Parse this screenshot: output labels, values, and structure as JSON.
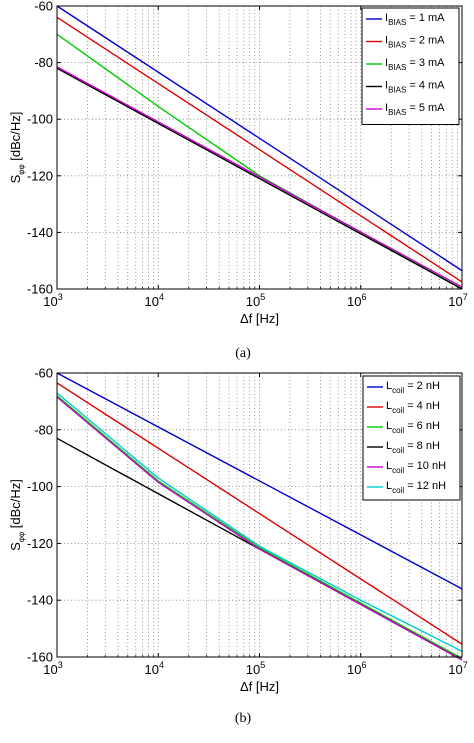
{
  "chart_data": [
    {
      "type": "line",
      "caption": "(a)",
      "xlabel": "Δf [Hz]",
      "ylabel": "S_φφ [dBc/Hz]",
      "xscale": "log",
      "xlim": [
        1000,
        10000000
      ],
      "ylim": [
        -160,
        -60
      ],
      "xticks": [
        1000,
        10000,
        100000,
        1000000,
        10000000
      ],
      "xtick_labels": [
        {
          "base": "10",
          "exp": "3"
        },
        {
          "base": "10",
          "exp": "4"
        },
        {
          "base": "10",
          "exp": "5"
        },
        {
          "base": "10",
          "exp": "6"
        },
        {
          "base": "10",
          "exp": "7"
        }
      ],
      "yticks": [
        -160,
        -140,
        -120,
        -100,
        -80,
        -60
      ],
      "ytick_labels": [
        "-160",
        "-140",
        "-120",
        "-100",
        "-80",
        "-60"
      ],
      "grid": true,
      "legend_position": "top-right",
      "series": [
        {
          "name": "I_BIAS = 1 mA",
          "label_main": "I",
          "label_sub": "BIAS",
          "label_rest": " = 1 mA",
          "color": "#0000cc",
          "x": [
            1000,
            10000000
          ],
          "y": [
            -60,
            -153.5
          ]
        },
        {
          "name": "I_BIAS = 2 mA",
          "label_main": "I",
          "label_sub": "BIAS",
          "label_rest": " = 2 mA",
          "color": "#dd0000",
          "x": [
            1000,
            10000000
          ],
          "y": [
            -64,
            -157.5
          ]
        },
        {
          "name": "I_BIAS = 3 mA",
          "label_main": "I",
          "label_sub": "BIAS",
          "label_rest": " = 3 mA",
          "color": "#00cc00",
          "x": [
            1000,
            10000,
            100000,
            1000000,
            10000000
          ],
          "y": [
            -70,
            -95.5,
            -120,
            -140,
            -160
          ]
        },
        {
          "name": "I_BIAS = 4 mA",
          "label_main": "I",
          "label_sub": "BIAS",
          "label_rest": " = 4 mA",
          "color": "#000000",
          "x": [
            1000,
            10000000
          ],
          "y": [
            -82,
            -160
          ]
        },
        {
          "name": "I_BIAS = 5 mA",
          "label_main": "I",
          "label_sub": "BIAS",
          "label_rest": " = 5 mA",
          "color": "#cc00cc",
          "x": [
            1000,
            10000000
          ],
          "y": [
            -81.5,
            -159.3
          ]
        }
      ]
    },
    {
      "type": "line",
      "caption": "(b)",
      "xlabel": "Δf [Hz]",
      "ylabel": "S_φφ [dBc/Hz]",
      "xscale": "log",
      "xlim": [
        1000,
        10000000
      ],
      "ylim": [
        -160,
        -60
      ],
      "xticks": [
        1000,
        10000,
        100000,
        1000000,
        10000000
      ],
      "xtick_labels": [
        {
          "base": "10",
          "exp": "3"
        },
        {
          "base": "10",
          "exp": "4"
        },
        {
          "base": "10",
          "exp": "5"
        },
        {
          "base": "10",
          "exp": "6"
        },
        {
          "base": "10",
          "exp": "7"
        }
      ],
      "yticks": [
        -160,
        -140,
        -120,
        -100,
        -80,
        -60
      ],
      "ytick_labels": [
        "-160",
        "-140",
        "-120",
        "-100",
        "-80",
        "-60"
      ],
      "grid": true,
      "legend_position": "top-right",
      "series": [
        {
          "name": "L_coil = 2 nH",
          "label_main": "L",
          "label_sub": "coil",
          "label_rest": " = 2 nH",
          "color": "#0000cc",
          "x": [
            1000,
            10000000
          ],
          "y": [
            -60,
            -136
          ]
        },
        {
          "name": "L_coil = 4 nH",
          "label_main": "L",
          "label_sub": "coil",
          "label_rest": " = 4 nH",
          "color": "#dd0000",
          "x": [
            1000,
            10000000
          ],
          "y": [
            -63.5,
            -155.5
          ]
        },
        {
          "name": "L_coil = 6 nH",
          "label_main": "L",
          "label_sub": "coil",
          "label_rest": " = 6 nH",
          "color": "#00cc00",
          "x": [
            1000,
            10000,
            100000,
            1000000,
            10000000
          ],
          "y": [
            -68,
            -98,
            -121.5,
            -141,
            -160.5
          ]
        },
        {
          "name": "L_coil = 8 nH",
          "label_main": "L",
          "label_sub": "coil",
          "label_rest": " = 8 nH",
          "color": "#000000",
          "x": [
            1000,
            10000000
          ],
          "y": [
            -83,
            -161
          ]
        },
        {
          "name": "L_coil = 10 nH",
          "label_main": "L",
          "label_sub": "coil",
          "label_rest": " = 10 nH",
          "color": "#cc00cc",
          "x": [
            1000,
            10000,
            100000,
            1000000,
            10000000
          ],
          "y": [
            -68.5,
            -98.5,
            -122,
            -141.5,
            -161
          ]
        },
        {
          "name": "L_coil = 12 nH",
          "label_main": "L",
          "label_sub": "coil",
          "label_rest": " = 12 nH",
          "color": "#00cccc",
          "x": [
            1000,
            10000,
            100000,
            1000000,
            10000000
          ],
          "y": [
            -67,
            -97,
            -121,
            -140,
            -158
          ]
        }
      ]
    }
  ]
}
